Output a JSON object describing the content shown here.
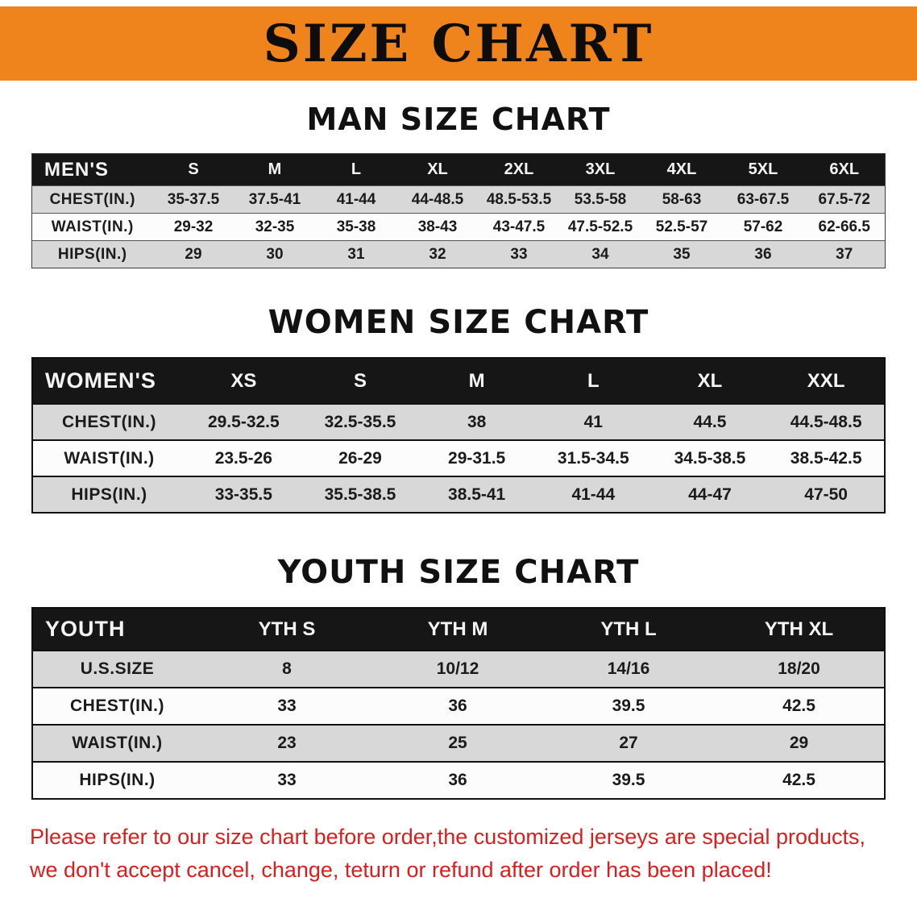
{
  "banner": {
    "title": "SIZE CHART"
  },
  "colors": {
    "banner-bg": "#f0841c",
    "table-header-bg": "#161616",
    "row-gray": "#d8d8d8",
    "row-light": "#fcfcfc",
    "footer-red": "#d81e1e",
    "title-black": "#111111"
  },
  "men": {
    "title": "MAN SIZE CHART",
    "header": "MEN'S",
    "columns": [
      "S",
      "M",
      "L",
      "XL",
      "2XL",
      "3XL",
      "4XL",
      "5XL",
      "6XL"
    ],
    "rows": [
      {
        "label": "CHEST(IN.)",
        "values": [
          "35-37.5",
          "37.5-41",
          "41-44",
          "44-48.5",
          "48.5-53.5",
          "53.5-58",
          "58-63",
          "63-67.5",
          "67.5-72"
        ]
      },
      {
        "label": "WAIST(IN.)",
        "values": [
          "29-32",
          "32-35",
          "35-38",
          "38-43",
          "43-47.5",
          "47.5-52.5",
          "52.5-57",
          "57-62",
          "62-66.5"
        ]
      },
      {
        "label": "HIPS(IN.)",
        "values": [
          "29",
          "30",
          "31",
          "32",
          "33",
          "34",
          "35",
          "36",
          "37"
        ]
      }
    ]
  },
  "women": {
    "title": "WOMEN SIZE CHART",
    "header": "WOMEN'S",
    "columns": [
      "XS",
      "S",
      "M",
      "L",
      "XL",
      "XXL"
    ],
    "rows": [
      {
        "label": "CHEST(IN.)",
        "values": [
          "29.5-32.5",
          "32.5-35.5",
          "38",
          "41",
          "44.5",
          "44.5-48.5"
        ]
      },
      {
        "label": "WAIST(IN.)",
        "values": [
          "23.5-26",
          "26-29",
          "29-31.5",
          "31.5-34.5",
          "34.5-38.5",
          "38.5-42.5"
        ]
      },
      {
        "label": "HIPS(IN.)",
        "values": [
          "33-35.5",
          "35.5-38.5",
          "38.5-41",
          "41-44",
          "44-47",
          "47-50"
        ]
      }
    ]
  },
  "youth": {
    "title": "YOUTH SIZE CHART",
    "header": "YOUTH",
    "columns": [
      "YTH S",
      "YTH M",
      "YTH L",
      "YTH XL"
    ],
    "rows": [
      {
        "label": "U.S.SIZE",
        "values": [
          "8",
          "10/12",
          "14/16",
          "18/20"
        ]
      },
      {
        "label": "CHEST(IN.)",
        "values": [
          "33",
          "36",
          "39.5",
          "42.5"
        ]
      },
      {
        "label": "WAIST(IN.)",
        "values": [
          "23",
          "25",
          "27",
          "29"
        ]
      },
      {
        "label": "HIPS(IN.)",
        "values": [
          "33",
          "36",
          "39.5",
          "42.5"
        ]
      }
    ]
  },
  "footer": {
    "line1": "Please refer to our size chart before order,the customized jerseys are special products,",
    "line2": "we don't accept cancel, change, teturn or refund after order has been placed!"
  }
}
